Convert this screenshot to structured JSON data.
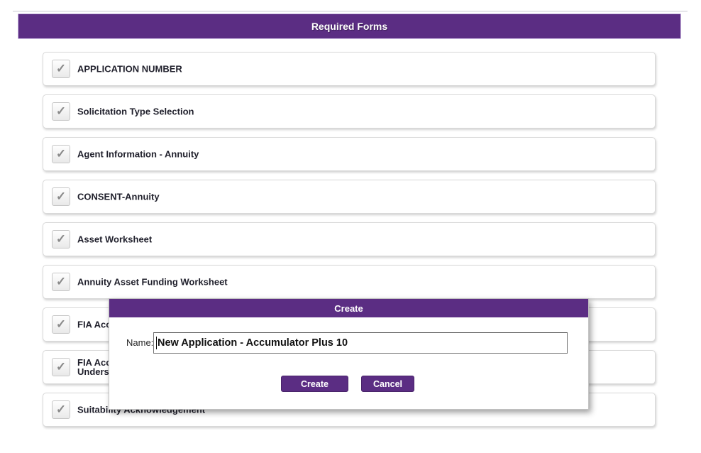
{
  "colors": {
    "accent": "#5b2d83",
    "check": "#8a8a8a"
  },
  "header": {
    "title": "Required Forms"
  },
  "icons": {
    "check": "✓"
  },
  "forms": [
    {
      "lines": [
        "APPLICATION NUMBER"
      ],
      "checked": true
    },
    {
      "lines": [
        "Solicitation Type Selection"
      ],
      "checked": true
    },
    {
      "lines": [
        "Agent Information - Annuity"
      ],
      "checked": true
    },
    {
      "lines": [
        "CONSENT-Annuity"
      ],
      "checked": true
    },
    {
      "lines": [
        "Asset Worksheet"
      ],
      "checked": true
    },
    {
      "lines": [
        "Annuity Asset Funding Worksheet"
      ],
      "checked": true
    },
    {
      "lines": [
        "FIA Acc"
      ],
      "checked": true
    },
    {
      "lines": [
        "FIA Acc",
        "Unders"
      ],
      "checked": true
    },
    {
      "lines": [
        "Suitability Acknowledgement"
      ],
      "checked": true
    }
  ],
  "modal": {
    "title": "Create",
    "name_label": "Name:",
    "name_value": "New Application - Accumulator Plus 10",
    "create_label": "Create",
    "cancel_label": "Cancel"
  }
}
